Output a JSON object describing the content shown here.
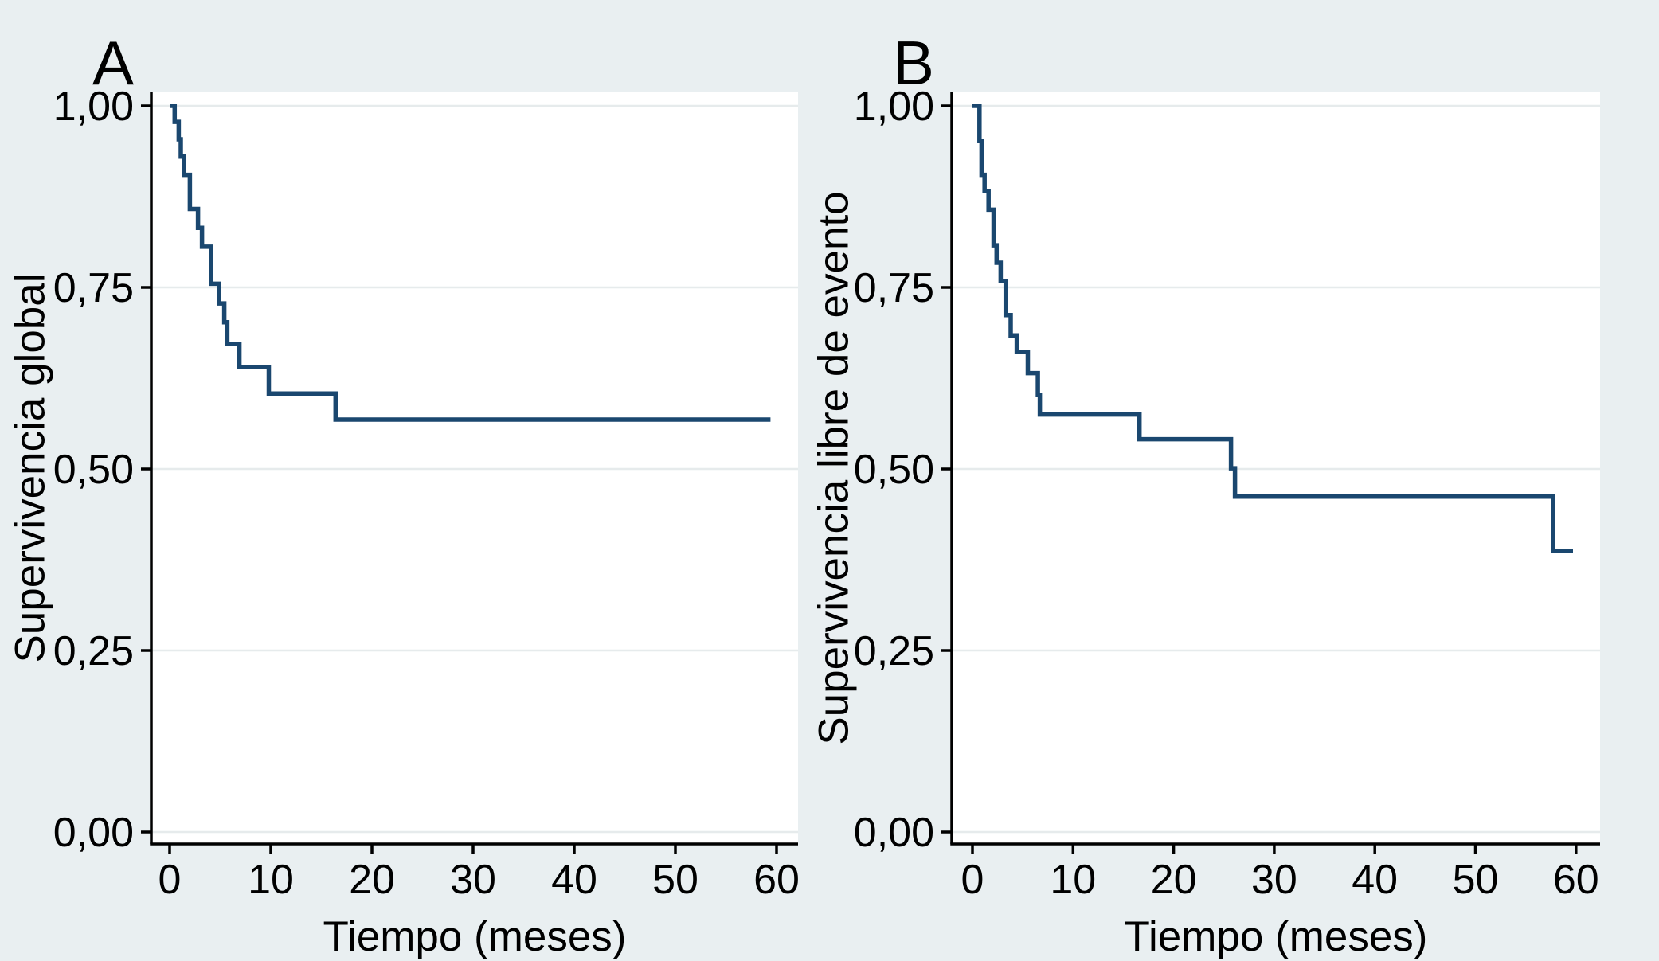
{
  "figure": {
    "description": "Two-panel Kaplan-Meier survival figure",
    "background_color": "#e9eff1",
    "plot_background_color": "#ffffff",
    "grid_color": "#e6ebec",
    "axis_color": "#000000",
    "curve_color": "#1a476f",
    "text_color": "#000000"
  },
  "chart_data": [
    {
      "type": "line",
      "subtype": "kaplan_meier_step",
      "panel_label": "A",
      "xlabel": "Tiempo (meses)",
      "ylabel": "Supervivencia global",
      "xlim": [
        0,
        62
      ],
      "ylim": [
        0.0,
        1.0
      ],
      "grid": true,
      "legend": "none",
      "decimal_separator": ",",
      "xticks": {
        "values": [
          0,
          10,
          20,
          30,
          40,
          50,
          60
        ],
        "labels": [
          "0",
          "10",
          "20",
          "30",
          "40",
          "50",
          "60"
        ]
      },
      "yticks": {
        "values": [
          0.0,
          0.25,
          0.5,
          0.75,
          1.0
        ],
        "labels": [
          "0,00",
          "0,25",
          "0,50",
          "0,75",
          "1,00"
        ]
      },
      "series": [
        {
          "name": "Supervivencia global",
          "step_points": [
            [
              0,
              1.0
            ],
            [
              0.5,
              0.978
            ],
            [
              0.9,
              0.954
            ],
            [
              1.1,
              0.93
            ],
            [
              1.4,
              0.905
            ],
            [
              2.0,
              0.858
            ],
            [
              2.8,
              0.832
            ],
            [
              3.2,
              0.806
            ],
            [
              4.1,
              0.755
            ],
            [
              4.9,
              0.728
            ],
            [
              5.4,
              0.702
            ],
            [
              5.7,
              0.672
            ],
            [
              6.9,
              0.64
            ],
            [
              9.8,
              0.604
            ],
            [
              16.4,
              0.568
            ]
          ],
          "end_time": 59.4,
          "final_value": 0.568
        }
      ]
    },
    {
      "type": "line",
      "subtype": "kaplan_meier_step",
      "panel_label": "B",
      "xlabel": "Tiempo (meses)",
      "ylabel": "Supervivencia libre de evento",
      "xlim": [
        0,
        62
      ],
      "ylim": [
        0.0,
        1.0
      ],
      "grid": true,
      "legend": "none",
      "decimal_separator": ",",
      "xticks": {
        "values": [
          0,
          10,
          20,
          30,
          40,
          50,
          60
        ],
        "labels": [
          "0",
          "10",
          "20",
          "30",
          "40",
          "50",
          "60"
        ]
      },
      "yticks": {
        "values": [
          0.0,
          0.25,
          0.5,
          0.75,
          1.0
        ],
        "labels": [
          "0,00",
          "0,25",
          "0,50",
          "0,75",
          "1,00"
        ]
      },
      "series": [
        {
          "name": "Supervivencia libre de evento",
          "step_points": [
            [
              0,
              1.0
            ],
            [
              0.7,
              0.952
            ],
            [
              0.9,
              0.905
            ],
            [
              1.2,
              0.883
            ],
            [
              1.6,
              0.857
            ],
            [
              2.1,
              0.808
            ],
            [
              2.4,
              0.784
            ],
            [
              2.8,
              0.759
            ],
            [
              3.3,
              0.712
            ],
            [
              3.8,
              0.684
            ],
            [
              4.4,
              0.661
            ],
            [
              5.5,
              0.632
            ],
            [
              6.5,
              0.602
            ],
            [
              6.7,
              0.575
            ],
            [
              16.6,
              0.541
            ],
            [
              25.7,
              0.501
            ],
            [
              26.1,
              0.462
            ],
            [
              57.7,
              0.387
            ]
          ],
          "end_time": 59.7,
          "final_value": 0.387
        }
      ]
    }
  ]
}
